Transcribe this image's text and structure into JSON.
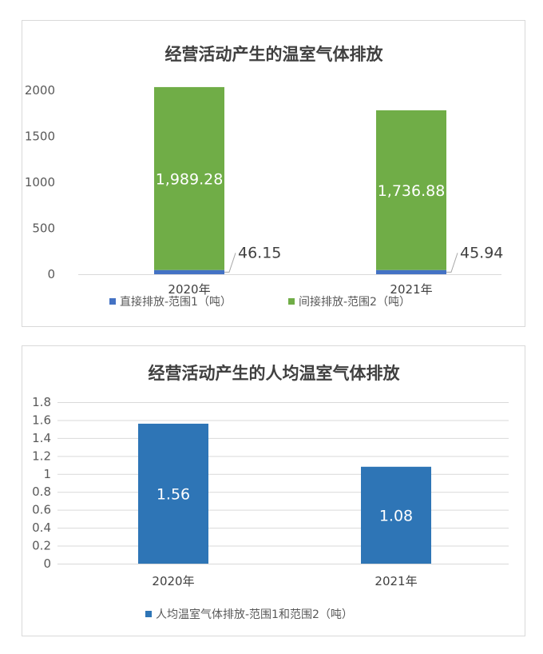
{
  "chart_data": [
    {
      "type": "bar",
      "stacked": true,
      "title": "经营活动产生的温室气体排放",
      "categories": [
        "2020年",
        "2021年"
      ],
      "series": [
        {
          "name": "直接排放-范围1（吨）",
          "values": [
            46.15,
            45.94
          ],
          "labels": [
            "46.15",
            "45.94"
          ],
          "color": "#4472C4"
        },
        {
          "name": "间接排放-范围2（吨）",
          "values": [
            1989.28,
            1736.88
          ],
          "labels": [
            "1,989.28",
            "1,736.88"
          ],
          "color": "#70AD47"
        }
      ],
      "yticks": [
        "0",
        "500",
        "1000",
        "1500",
        "2000"
      ],
      "ylim": [
        0,
        2000
      ],
      "grid": false,
      "legend": "bottom"
    },
    {
      "type": "bar",
      "title": "经营活动产生的人均温室气体排放",
      "categories": [
        "2020年",
        "2021年"
      ],
      "series": [
        {
          "name": "人均温室气体排放-范围1和范围2（吨）",
          "values": [
            1.56,
            1.08
          ],
          "labels": [
            "1.56",
            "1.08"
          ],
          "color": "#2E75B6"
        }
      ],
      "yticks": [
        "0",
        "0.2",
        "0.4",
        "0.6",
        "0.8",
        "1",
        "1.2",
        "1.4",
        "1.6",
        "1.8"
      ],
      "ylim": [
        0,
        1.8
      ],
      "grid": true,
      "legend": "bottom"
    }
  ]
}
